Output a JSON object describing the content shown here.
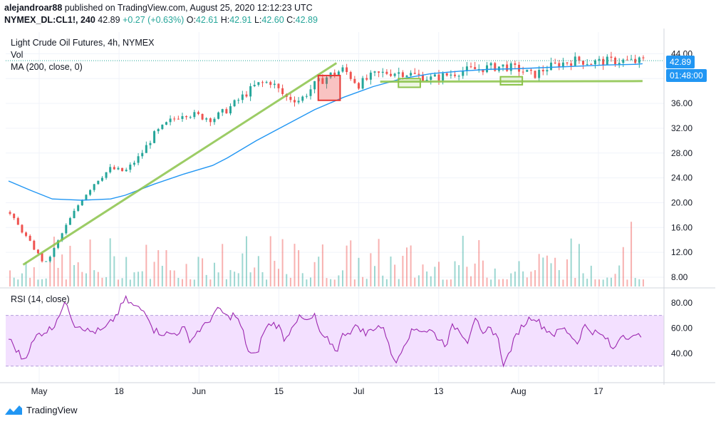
{
  "header": {
    "author": "alejandroar88",
    "published_text": "published on TradingView.com, August 25, 2020 12:12:23 UTC",
    "symbol": "NYMEX_DL:CL1!, 240",
    "last": "42.89",
    "change": "+0.27 (+0.63%)",
    "o_label": "O:",
    "o_value": "42.61",
    "h_label": "H:",
    "h_value": "42.91",
    "l_label": "L:",
    "l_value": "42.60",
    "c_label": "C:",
    "c_value": "42.89"
  },
  "legend": {
    "title": "Light Crude Oil Futures, 4h, NYMEX",
    "vol": "Vol",
    "ma": "MA (200, close, 0)",
    "rsi": "RSI (14, close)"
  },
  "price_tags": {
    "last": "42.89",
    "countdown": "01:48:00"
  },
  "footer": {
    "brand": "TradingView"
  },
  "colors": {
    "up": "#26a69a",
    "down": "#ef5350",
    "ma": "#2196f3",
    "rsi": "#9c27b0",
    "rsi_band": "#f3e0ff",
    "trend": "#8bc34a"
  },
  "chart_data": [
    {
      "type": "candlestick",
      "title": "Light Crude Oil Futures, 4h, NYMEX",
      "x_ticks": [
        "May",
        "18",
        "Jun",
        "15",
        "Jul",
        "13",
        "Aug",
        "17"
      ],
      "y_ticks": [
        8,
        12,
        16,
        20,
        24,
        28,
        32,
        36,
        40,
        44
      ],
      "y_tick_labels": [
        "8.00",
        "12.00",
        "16.00",
        "20.00",
        "24.00",
        "28.00",
        "32.00",
        "36.00",
        "40.00",
        "44.00"
      ],
      "ylim": [
        6.5,
        47.5
      ],
      "close_path": [
        [
          0,
          18.5
        ],
        [
          3,
          13.5
        ],
        [
          5,
          10.0
        ],
        [
          6,
          12.0
        ],
        [
          8,
          16.5
        ],
        [
          10,
          20.5
        ],
        [
          12,
          23.5
        ],
        [
          14,
          25.5
        ],
        [
          16,
          25.0
        ],
        [
          18,
          27.5
        ],
        [
          20,
          31.0
        ],
        [
          22,
          33.0
        ],
        [
          24,
          34.5
        ],
        [
          26,
          34.0
        ],
        [
          28,
          33.5
        ],
        [
          30,
          35.0
        ],
        [
          32,
          37.0
        ],
        [
          34,
          39.0
        ],
        [
          36,
          39.5
        ],
        [
          38,
          37.0
        ],
        [
          40,
          36.5
        ],
        [
          42,
          39.0
        ],
        [
          44,
          40.5
        ],
        [
          46,
          41.5
        ],
        [
          48,
          39.0
        ],
        [
          50,
          40.5
        ],
        [
          52,
          41.0
        ],
        [
          54,
          41.0
        ],
        [
          56,
          40.5
        ],
        [
          58,
          40.0
        ],
        [
          60,
          40.5
        ],
        [
          62,
          41.2
        ],
        [
          64,
          41.5
        ],
        [
          66,
          41.8
        ],
        [
          68,
          42.0
        ],
        [
          70,
          41.5
        ],
        [
          72,
          40.5
        ],
        [
          74,
          41.8
        ],
        [
          76,
          42.5
        ],
        [
          78,
          43.0
        ],
        [
          80,
          42.6
        ],
        [
          82,
          42.8
        ],
        [
          84,
          42.9
        ],
        [
          86,
          42.7
        ],
        [
          87,
          42.89
        ]
      ],
      "ma_path": [
        [
          0,
          23.5
        ],
        [
          3,
          22.0
        ],
        [
          6,
          20.6
        ],
        [
          10,
          20.4
        ],
        [
          14,
          20.6
        ],
        [
          16,
          21.2
        ],
        [
          20,
          23.0
        ],
        [
          24,
          24.6
        ],
        [
          28,
          26.0
        ],
        [
          30,
          27.2
        ],
        [
          34,
          30.0
        ],
        [
          38,
          32.5
        ],
        [
          42,
          35.0
        ],
        [
          46,
          37.0
        ],
        [
          50,
          38.7
        ],
        [
          54,
          40.0
        ],
        [
          58,
          40.8
        ],
        [
          62,
          41.2
        ],
        [
          66,
          41.5
        ],
        [
          70,
          41.6
        ],
        [
          74,
          41.8
        ],
        [
          78,
          42.0
        ],
        [
          82,
          42.2
        ],
        [
          86,
          42.3
        ],
        [
          87,
          42.4
        ]
      ],
      "volume_max": 17.0,
      "annotations": [
        {
          "type": "trendline",
          "from": [
            2,
            10
          ],
          "to": [
            45,
            42.5
          ]
        },
        {
          "type": "support-line",
          "from": [
            51,
            39.5
          ],
          "to": [
            87,
            39.6
          ]
        },
        {
          "type": "box",
          "color": "red",
          "x": [
            42.5,
            45.5
          ],
          "y": [
            36.5,
            40.5
          ]
        },
        {
          "type": "box",
          "color": "green",
          "x": [
            53.5,
            56.5
          ],
          "y": [
            38.6,
            40.0
          ]
        },
        {
          "type": "box",
          "color": "green",
          "x": [
            67.5,
            70.5
          ],
          "y": [
            39.0,
            40.3
          ]
        }
      ],
      "last_price": 42.89
    },
    {
      "type": "line",
      "title": "RSI (14, close)",
      "y_ticks": [
        40,
        60,
        80
      ],
      "y_tick_labels": [
        "40.00",
        "60.00",
        "80.00"
      ],
      "ylim": [
        22,
        90
      ],
      "band": [
        30,
        70
      ],
      "path": [
        [
          0,
          52
        ],
        [
          2,
          35
        ],
        [
          4,
          55
        ],
        [
          6,
          60
        ],
        [
          7,
          72
        ],
        [
          8,
          80
        ],
        [
          9,
          63
        ],
        [
          10,
          62
        ],
        [
          11,
          57
        ],
        [
          13,
          58
        ],
        [
          14,
          64
        ],
        [
          15,
          72
        ],
        [
          16,
          83
        ],
        [
          17,
          78
        ],
        [
          18,
          75
        ],
        [
          19,
          72
        ],
        [
          20,
          58
        ],
        [
          22,
          55
        ],
        [
          23,
          56
        ],
        [
          24,
          60
        ],
        [
          25,
          50
        ],
        [
          26,
          58
        ],
        [
          27,
          62
        ],
        [
          28,
          70
        ],
        [
          29,
          75
        ],
        [
          30,
          68
        ],
        [
          31,
          71
        ],
        [
          32,
          60
        ],
        [
          33,
          40
        ],
        [
          34,
          38
        ],
        [
          35,
          57
        ],
        [
          36,
          64
        ],
        [
          37,
          62
        ],
        [
          38,
          50
        ],
        [
          39,
          64
        ],
        [
          40,
          68
        ],
        [
          41,
          65
        ],
        [
          42,
          69
        ],
        [
          43,
          52
        ],
        [
          44,
          50
        ],
        [
          45,
          42
        ],
        [
          46,
          56
        ],
        [
          47,
          58
        ],
        [
          48,
          62
        ],
        [
          49,
          55
        ],
        [
          50,
          60
        ],
        [
          51,
          62
        ],
        [
          52,
          53
        ],
        [
          53,
          30
        ],
        [
          54,
          45
        ],
        [
          55,
          55
        ],
        [
          56,
          60
        ],
        [
          57,
          58
        ],
        [
          58,
          58
        ],
        [
          59,
          52
        ],
        [
          60,
          47
        ],
        [
          61,
          62
        ],
        [
          62,
          58
        ],
        [
          63,
          50
        ],
        [
          64,
          70
        ],
        [
          65,
          52
        ],
        [
          66,
          60
        ],
        [
          67,
          55
        ],
        [
          68,
          30
        ],
        [
          69,
          45
        ],
        [
          70,
          58
        ],
        [
          71,
          65
        ],
        [
          72,
          70
        ],
        [
          73,
          63
        ],
        [
          74,
          58
        ],
        [
          75,
          55
        ],
        [
          76,
          60
        ],
        [
          77,
          56
        ],
        [
          78,
          48
        ],
        [
          79,
          62
        ],
        [
          80,
          58
        ],
        [
          81,
          55
        ],
        [
          82,
          52
        ],
        [
          83,
          42
        ],
        [
          84,
          55
        ],
        [
          85,
          54
        ],
        [
          86,
          52
        ],
        [
          87,
          56
        ]
      ]
    }
  ]
}
